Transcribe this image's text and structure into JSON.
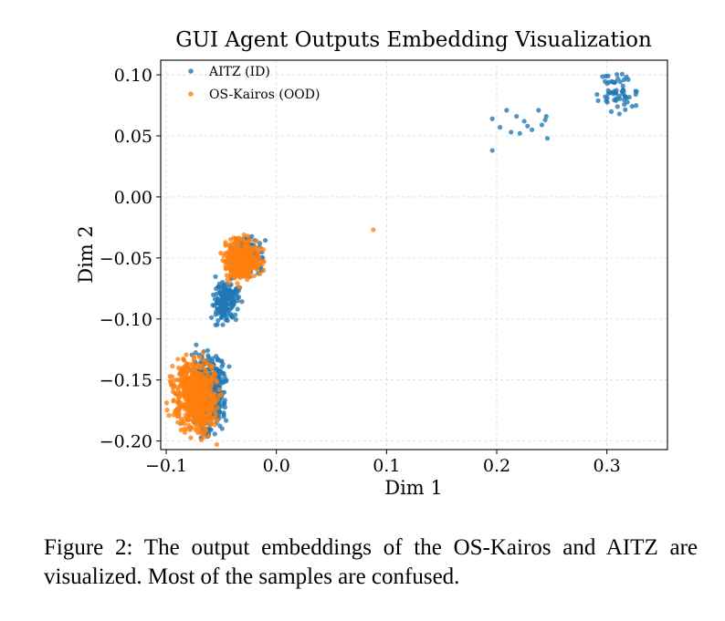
{
  "chart_data": {
    "type": "scatter",
    "title": "GUI Agent Outputs Embedding Visualization",
    "xlabel": "Dim 1",
    "ylabel": "Dim 2",
    "xlim": [
      -0.105,
      0.355
    ],
    "ylim": [
      -0.207,
      0.112
    ],
    "xticks": [
      -0.1,
      0.0,
      0.1,
      0.2,
      0.3
    ],
    "xtick_labels": [
      "−0.1",
      "0.0",
      "0.1",
      "0.2",
      "0.3"
    ],
    "yticks": [
      0.1,
      0.05,
      0.0,
      -0.05,
      -0.1,
      -0.15,
      -0.2
    ],
    "ytick_labels": [
      "0.10",
      "0.05",
      "0.00",
      "−0.05",
      "−0.10",
      "−0.15",
      "−0.20"
    ],
    "grid": true,
    "legend_position": "top-left",
    "series": [
      {
        "name": "AITZ (ID)",
        "color": "#1f77b4",
        "clusters": [
          {
            "x": [
              -0.079,
              -0.044
            ],
            "y": [
              -0.198,
              -0.122
            ],
            "n": 520
          },
          {
            "x": [
              -0.06,
              -0.032
            ],
            "y": [
              -0.104,
              -0.066
            ],
            "n": 170
          },
          {
            "x": [
              -0.046,
              -0.012
            ],
            "y": [
              -0.068,
              -0.03
            ],
            "n": 200
          },
          {
            "x": [
              0.29,
              0.33
            ],
            "y": [
              0.067,
              0.105
            ],
            "n": 60
          }
        ],
        "points": [
          {
            "x": 0.196,
            "y": 0.064
          },
          {
            "x": 0.196,
            "y": 0.038
          },
          {
            "x": 0.203,
            "y": 0.057
          },
          {
            "x": 0.209,
            "y": 0.071
          },
          {
            "x": 0.213,
            "y": 0.053
          },
          {
            "x": 0.218,
            "y": 0.066
          },
          {
            "x": 0.221,
            "y": 0.052
          },
          {
            "x": 0.225,
            "y": 0.062
          },
          {
            "x": 0.228,
            "y": 0.058
          },
          {
            "x": 0.232,
            "y": 0.055
          },
          {
            "x": 0.238,
            "y": 0.071
          },
          {
            "x": 0.241,
            "y": 0.059
          },
          {
            "x": 0.245,
            "y": 0.066
          },
          {
            "x": 0.246,
            "y": 0.048
          },
          {
            "x": 0.244,
            "y": 0.063
          }
        ]
      },
      {
        "name": "OS-Kairos (OOD)",
        "color": "#ff7f0e",
        "clusters": [
          {
            "x": [
              -0.098,
              -0.05
            ],
            "y": [
              -0.2,
              -0.128
            ],
            "n": 560
          },
          {
            "x": [
              -0.051,
              -0.012
            ],
            "y": [
              -0.073,
              -0.03
            ],
            "n": 330
          }
        ],
        "points": [
          {
            "x": 0.088,
            "y": -0.027
          }
        ]
      }
    ]
  },
  "caption": "Figure 2: The output embeddings of the OS-Kairos and AITZ are visualized. Most of the samples are confused."
}
